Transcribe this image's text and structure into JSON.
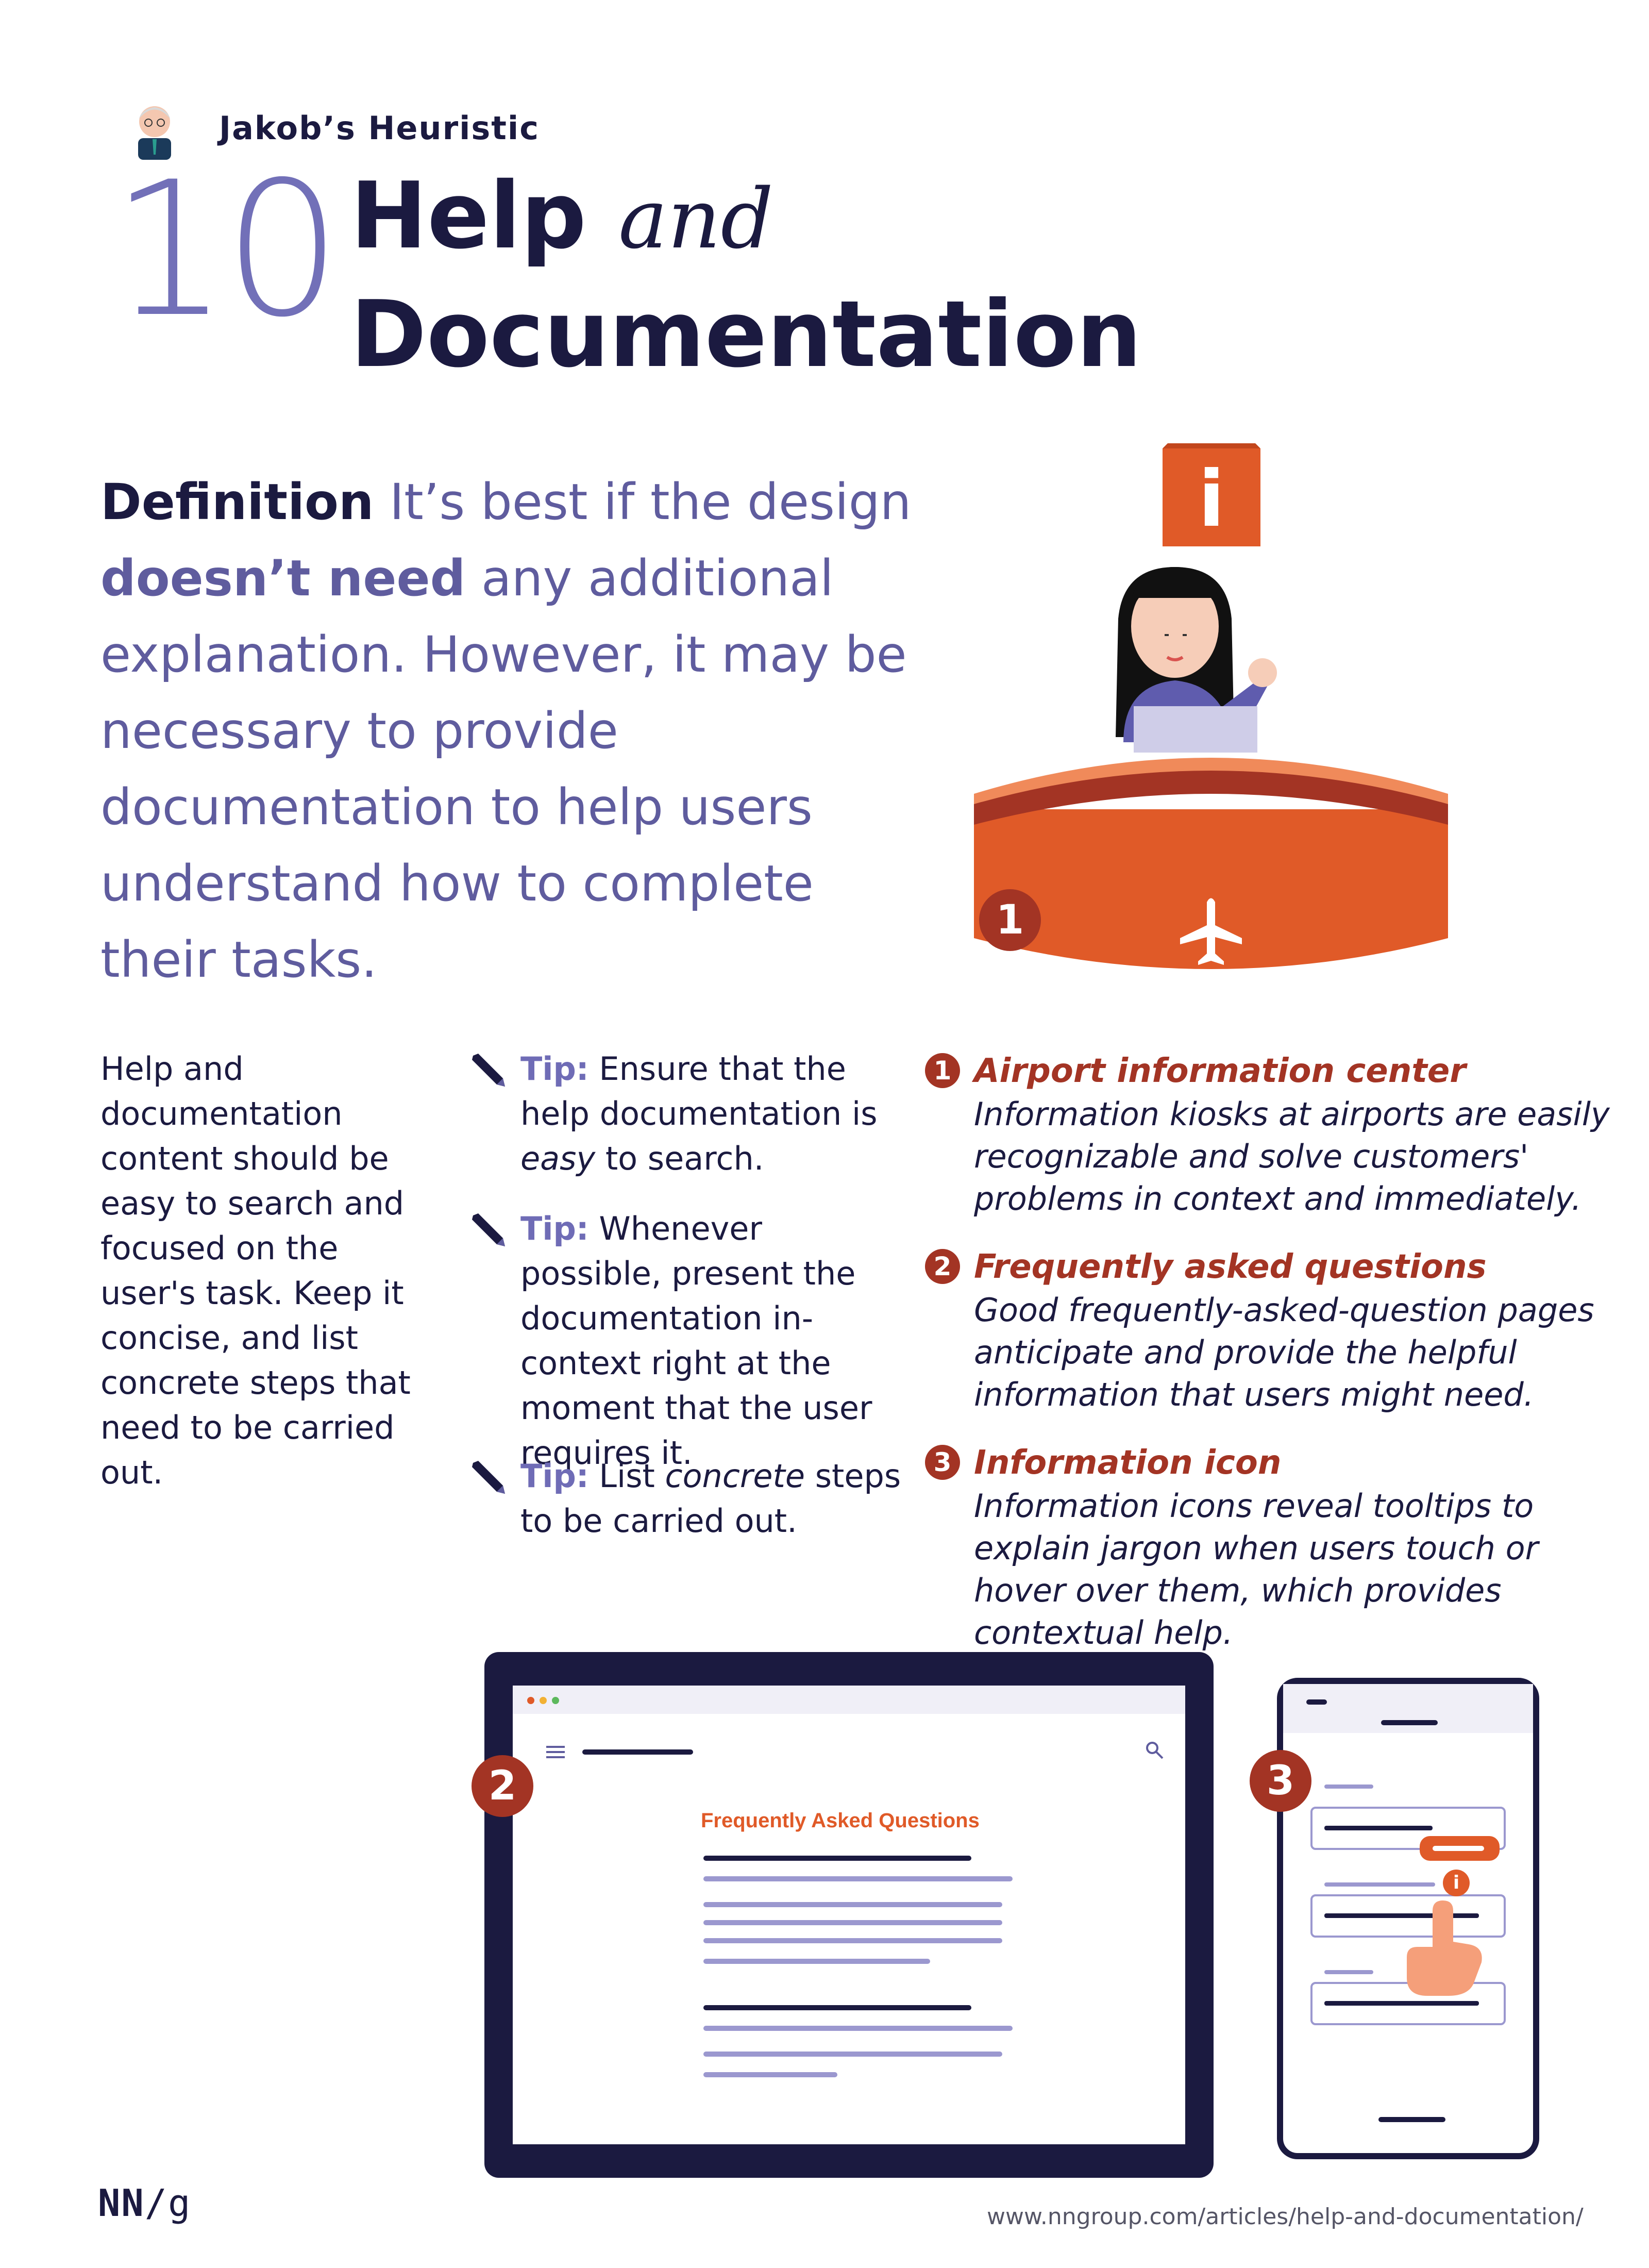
{
  "header": {
    "kicker": "Jakob’s Heuristic",
    "number": "10",
    "title_bold_1": "Help",
    "title_italic": "and",
    "title_bold_2": "Documentation"
  },
  "definition": {
    "label": "Definition",
    "text_1": " It’s best if the design ",
    "emphasis": "doesn’t need",
    "text_2": " any additional explanation. However, it may be necessary to provide documentation to help users understand how to complete their tasks."
  },
  "body_text": "Help and documentation content should be easy to search and focused on the user's task. Keep it concise, and list concrete steps that need to be carried out.",
  "tips": [
    {
      "label": "Tip:",
      "pre": " Ensure that the help documentation is ",
      "em": "easy",
      "post": " to search."
    },
    {
      "label": "Tip:",
      "pre": " Whenever possible, present the documentation in-context right at the moment that the user requires it.",
      "em": "",
      "post": ""
    },
    {
      "label": "Tip:",
      "pre": " List ",
      "em": "concrete",
      "post": " steps to be carried out."
    }
  ],
  "examples": [
    {
      "num": "1",
      "title": "Airport information center",
      "desc": "Information kiosks at airports are easily recognizable and solve customers' problems in context and immediately."
    },
    {
      "num": "2",
      "title": "Frequently asked questions",
      "desc": "Good frequently-asked-question pages anticipate and provide the helpful information that users might need."
    },
    {
      "num": "3",
      "title": "Information icon",
      "desc": "Information icons reveal tooltips to explain jargon when users touch or hover over them, which provides contextual help."
    }
  ],
  "illustrations": {
    "desk_badge": "1",
    "info_sign_glyph": "i",
    "tablet_badge": "2",
    "tablet_faq_title": "Frequently Asked Questions",
    "phone_badge": "3",
    "phone_info_glyph": "i"
  },
  "footer": {
    "logo_nn": "NN",
    "logo_g": "/g",
    "url": "www.nngroup.com/articles/help-and-documentation/"
  },
  "colors": {
    "navy": "#1b1a40",
    "purple": "#5f5c9e",
    "accent_orange": "#e05a28",
    "badge_rust": "#a33424"
  },
  "icons": [
    "person-avatar-icon",
    "info-sign-icon",
    "airplane-icon",
    "pen-icon",
    "search-icon",
    "menu-icon",
    "pointing-hand-icon"
  ]
}
